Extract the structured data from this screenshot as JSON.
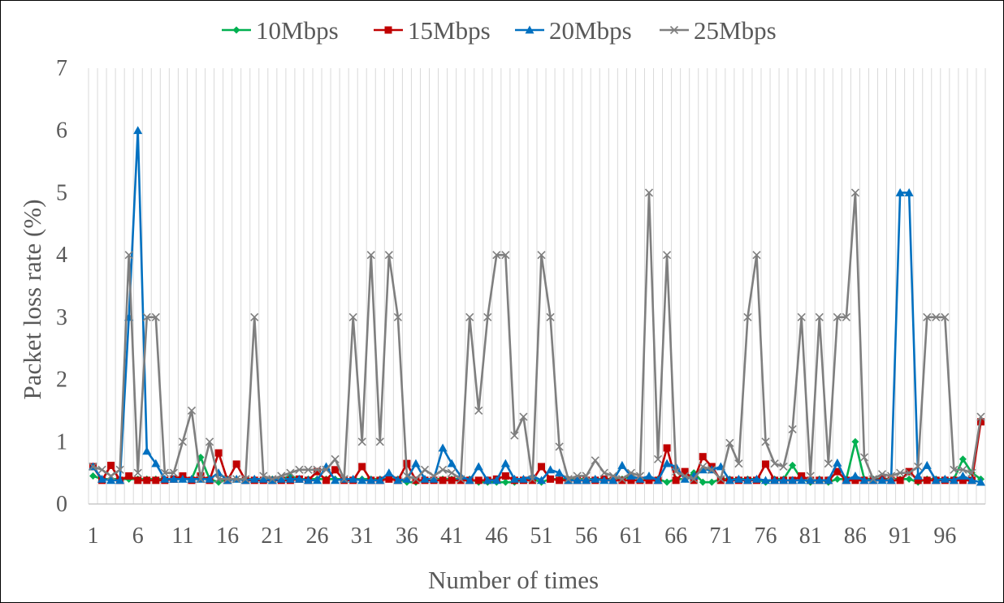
{
  "chart_data": {
    "type": "line",
    "title": "",
    "xlabel": "Number of times",
    "ylabel": "Packet loss rate (%)",
    "ylim": [
      0,
      7
    ],
    "yticks": [
      "0",
      "1",
      "2",
      "3",
      "4",
      "5",
      "6",
      "7"
    ],
    "xlim": [
      1,
      100
    ],
    "xticks": [
      1,
      6,
      11,
      16,
      21,
      26,
      31,
      36,
      41,
      46,
      51,
      56,
      61,
      66,
      71,
      76,
      81,
      86,
      91,
      96
    ],
    "grid": "vertical",
    "legend_position": "top",
    "series": [
      {
        "name": "10Mbps",
        "color": "#00B050",
        "marker": "diamond",
        "values": [
          0.45,
          0.4,
          0.4,
          0.4,
          0.4,
          0.4,
          0.4,
          0.4,
          0.4,
          0.4,
          0.4,
          0.4,
          0.75,
          0.4,
          0.35,
          0.4,
          0.4,
          0.4,
          0.4,
          0.4,
          0.4,
          0.4,
          0.45,
          0.4,
          0.4,
          0.4,
          0.4,
          0.4,
          0.4,
          0.4,
          0.4,
          0.4,
          0.4,
          0.4,
          0.4,
          0.35,
          0.35,
          0.4,
          0.4,
          0.4,
          0.4,
          0.4,
          0.4,
          0.35,
          0.35,
          0.35,
          0.35,
          0.35,
          0.4,
          0.4,
          0.35,
          0.4,
          0.4,
          0.4,
          0.4,
          0.4,
          0.4,
          0.4,
          0.4,
          0.4,
          0.45,
          0.4,
          0.4,
          0.4,
          0.35,
          0.4,
          0.4,
          0.5,
          0.35,
          0.35,
          0.4,
          0.4,
          0.4,
          0.4,
          0.4,
          0.35,
          0.4,
          0.4,
          0.62,
          0.4,
          0.35,
          0.4,
          0.35,
          0.4,
          0.4,
          1.0,
          0.4,
          0.4,
          0.4,
          0.4,
          0.4,
          0.4,
          0.35,
          0.4,
          0.4,
          0.4,
          0.4,
          0.72,
          0.5,
          0.4
        ]
      },
      {
        "name": "15Mbps",
        "color": "#C00000",
        "marker": "square",
        "values": [
          0.6,
          0.38,
          0.62,
          0.38,
          0.45,
          0.38,
          0.38,
          0.38,
          0.38,
          0.4,
          0.45,
          0.38,
          0.45,
          0.38,
          0.82,
          0.38,
          0.64,
          0.38,
          0.38,
          0.38,
          0.38,
          0.38,
          0.38,
          0.4,
          0.38,
          0.52,
          0.38,
          0.55,
          0.38,
          0.38,
          0.6,
          0.38,
          0.38,
          0.4,
          0.38,
          0.65,
          0.38,
          0.38,
          0.38,
          0.38,
          0.38,
          0.38,
          0.38,
          0.38,
          0.38,
          0.4,
          0.45,
          0.38,
          0.38,
          0.38,
          0.6,
          0.4,
          0.38,
          0.38,
          0.38,
          0.38,
          0.38,
          0.4,
          0.38,
          0.38,
          0.38,
          0.38,
          0.38,
          0.38,
          0.9,
          0.38,
          0.52,
          0.38,
          0.76,
          0.6,
          0.38,
          0.38,
          0.38,
          0.38,
          0.38,
          0.64,
          0.38,
          0.38,
          0.38,
          0.45,
          0.38,
          0.38,
          0.38,
          0.52,
          0.38,
          0.38,
          0.38,
          0.38,
          0.4,
          0.38,
          0.38,
          0.52,
          0.38,
          0.38,
          0.38,
          0.38,
          0.38,
          0.38,
          0.38,
          1.32
        ]
      },
      {
        "name": "20Mbps",
        "color": "#0070C0",
        "marker": "triangle",
        "values": [
          0.6,
          0.4,
          0.38,
          0.38,
          3.0,
          6.0,
          0.85,
          0.65,
          0.4,
          0.4,
          0.4,
          0.4,
          0.4,
          0.4,
          0.5,
          0.38,
          0.4,
          0.38,
          0.4,
          0.4,
          0.38,
          0.4,
          0.4,
          0.4,
          0.38,
          0.38,
          0.6,
          0.38,
          0.4,
          0.4,
          0.38,
          0.38,
          0.38,
          0.5,
          0.38,
          0.4,
          0.65,
          0.4,
          0.4,
          0.9,
          0.65,
          0.45,
          0.38,
          0.6,
          0.38,
          0.38,
          0.65,
          0.4,
          0.4,
          0.45,
          0.38,
          0.55,
          0.5,
          0.38,
          0.38,
          0.38,
          0.4,
          0.38,
          0.38,
          0.62,
          0.45,
          0.4,
          0.45,
          0.38,
          0.65,
          0.6,
          0.4,
          0.45,
          0.55,
          0.55,
          0.6,
          0.38,
          0.4,
          0.38,
          0.4,
          0.38,
          0.38,
          0.38,
          0.38,
          0.38,
          0.38,
          0.38,
          0.38,
          0.66,
          0.38,
          0.45,
          0.38,
          0.38,
          0.38,
          0.38,
          5.0,
          5.0,
          0.45,
          0.62,
          0.38,
          0.4,
          0.38,
          0.45,
          0.38,
          0.35
        ]
      },
      {
        "name": "25Mbps",
        "color": "#7F7F7F",
        "marker": "cross",
        "values": [
          0.6,
          0.55,
          0.45,
          0.55,
          4.0,
          0.5,
          3.0,
          3.0,
          0.5,
          0.5,
          1.0,
          1.5,
          0.4,
          1.0,
          0.4,
          0.4,
          0.4,
          0.4,
          3.0,
          0.45,
          0.4,
          0.45,
          0.5,
          0.55,
          0.55,
          0.55,
          0.55,
          0.72,
          0.4,
          3.0,
          1.0,
          4.0,
          1.0,
          4.0,
          3.0,
          0.45,
          0.4,
          0.55,
          0.45,
          0.55,
          0.5,
          0.4,
          3.0,
          1.5,
          3.0,
          4.0,
          4.0,
          1.1,
          1.4,
          0.4,
          4.0,
          3.0,
          0.92,
          0.4,
          0.45,
          0.45,
          0.7,
          0.5,
          0.45,
          0.4,
          0.5,
          0.45,
          5.0,
          0.72,
          4.0,
          0.52,
          0.45,
          0.4,
          0.6,
          0.55,
          0.4,
          0.98,
          0.65,
          3.0,
          4.0,
          1.0,
          0.65,
          0.6,
          1.2,
          3.0,
          0.45,
          3.0,
          0.65,
          3.0,
          3.0,
          5.0,
          0.75,
          0.4,
          0.48,
          0.45,
          0.5,
          0.5,
          0.6,
          3.0,
          3.0,
          3.0,
          0.55,
          0.55,
          0.5,
          1.4
        ]
      }
    ]
  }
}
